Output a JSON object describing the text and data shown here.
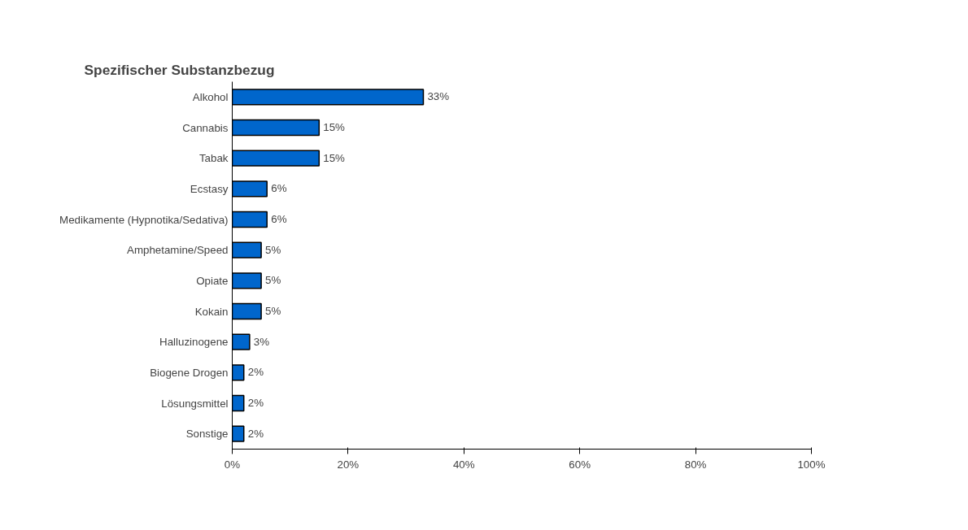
{
  "chart_data": {
    "type": "bar",
    "orientation": "horizontal",
    "title": "Spezifischer Substanzbezug",
    "categories": [
      "Alkohol",
      "Cannabis",
      "Tabak",
      "Ecstasy",
      "Medikamente (Hypnotika/Sedativa)",
      "Amphetamine/Speed",
      "Opiate",
      "Kokain",
      "Halluzinogene",
      "Biogene Drogen",
      "Lösungsmittel",
      "Sonstige"
    ],
    "values": [
      33,
      15,
      15,
      6,
      6,
      5,
      5,
      5,
      3,
      2,
      2,
      2
    ],
    "value_labels": [
      "33%",
      "15%",
      "15%",
      "6%",
      "6%",
      "5%",
      "5%",
      "5%",
      "3%",
      "2%",
      "2%",
      "2%"
    ],
    "color": "#0066cc",
    "xlim": [
      0,
      100
    ],
    "xticks": [
      {
        "value": 0,
        "label": "0%"
      },
      {
        "value": 20,
        "label": "20%"
      },
      {
        "value": 40,
        "label": "40%"
      },
      {
        "value": 60,
        "label": "60%"
      },
      {
        "value": 80,
        "label": "80%"
      },
      {
        "value": 100,
        "label": "100%"
      }
    ],
    "grid": false
  }
}
